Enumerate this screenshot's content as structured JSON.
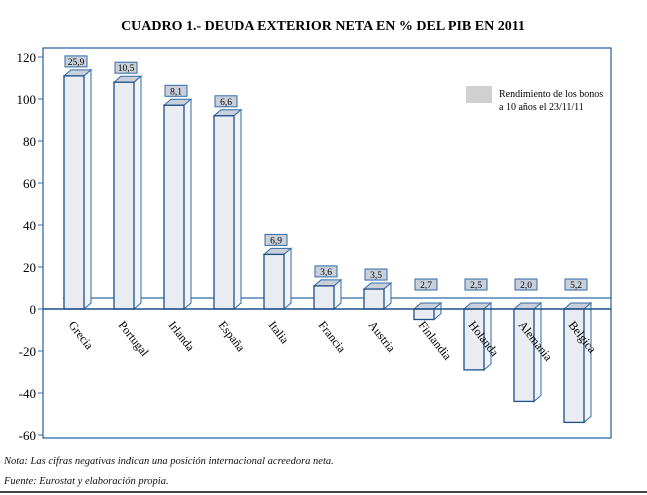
{
  "chart_data": {
    "type": "bar",
    "title": "CUADRO 1.- DEUDA EXTERIOR NETA EN % DEL PIB EN 2011",
    "categories": [
      "Grecia",
      "Portugal",
      "Irlanda",
      "España",
      "Italia",
      "Francia",
      "Austria",
      "Finlandia",
      "Holanda",
      "Alemania",
      "Belgica"
    ],
    "values": [
      111,
      108,
      97,
      92,
      26,
      11,
      9.5,
      -5,
      -29,
      -44,
      -54
    ],
    "bond_yields": [
      "25,9",
      "10,5",
      "8,1",
      "6,6",
      "6,9",
      "3,6",
      "3,5",
      "2,7",
      "2,5",
      "2,0",
      "5,2"
    ],
    "yticks": [
      "120",
      "100",
      "80",
      "60",
      "40",
      "20",
      "0",
      "-20",
      "-40",
      "-60"
    ],
    "ylim": [
      -60,
      120
    ],
    "legend": {
      "line1": "Rendimiento de los bonos",
      "line2": "a 10 años el 23/11/11",
      "placement": "top-right"
    },
    "colors": {
      "frame": "#2f6aa8",
      "bar": "#e9ecf1",
      "label_box": "#c9d0da"
    }
  },
  "notes": {
    "nota": "Nota: Las cifras negativas indican una posición internacional acreedora neta.",
    "fuente": "Fuente: Eurostat y elaboración propia."
  }
}
